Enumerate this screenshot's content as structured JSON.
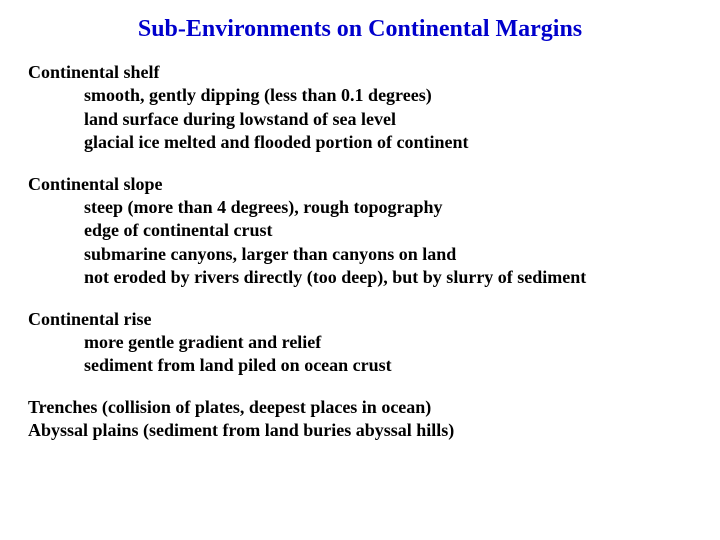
{
  "title": {
    "text": "Sub-Environments on Continental Margins",
    "color": "#0000cc",
    "fontsize": 24
  },
  "body": {
    "color": "#000000",
    "fontsize": 18,
    "line_height": 1.3
  },
  "sections": [
    {
      "heading": "Continental shelf",
      "lines": [
        "smooth, gently dipping (less than 0.1 degrees)",
        "land surface during lowstand of sea level",
        "glacial ice melted and flooded portion of continent"
      ]
    },
    {
      "heading": "Continental slope",
      "lines": [
        "steep (more than 4 degrees), rough topography",
        "edge of continental crust",
        "submarine canyons, larger than canyons on land",
        "not eroded by rivers directly (too deep), but by slurry of sediment"
      ]
    },
    {
      "heading": "Continental rise",
      "lines": [
        "more gentle gradient and relief",
        "sediment from land piled on ocean crust"
      ]
    }
  ],
  "footer_lines": [
    "Trenches (collision of plates, deepest places in ocean)",
    "Abyssal plains (sediment from land buries abyssal hills)"
  ]
}
